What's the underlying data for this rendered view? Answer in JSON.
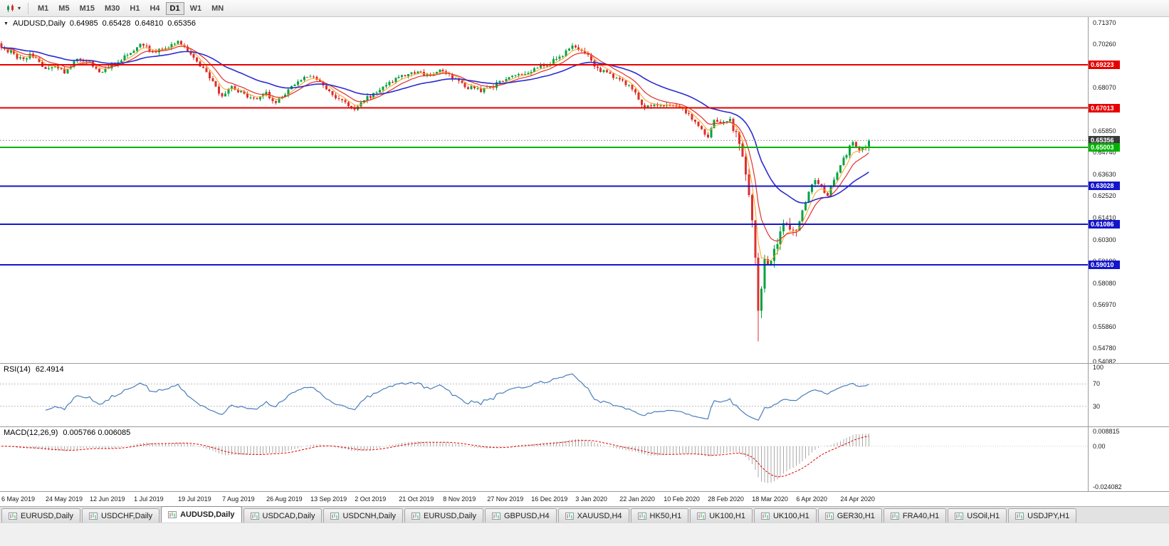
{
  "icons": {
    "collapse": "▼",
    "caret": "▾"
  },
  "toolbar": {
    "timeframes": [
      "M1",
      "M5",
      "M15",
      "M30",
      "H1",
      "H4",
      "D1",
      "W1",
      "MN"
    ],
    "active_timeframe": "D1"
  },
  "chart_header": {
    "symbol": "AUDUSD,Daily",
    "open": "0.64985",
    "high": "0.65428",
    "low": "0.64810",
    "close": "0.65356"
  },
  "levels": [
    {
      "label": "0.69223",
      "value": 0.69223,
      "color": "#e60000"
    },
    {
      "label": "0.67013",
      "value": 0.67013,
      "color": "#e60000"
    },
    {
      "label": "0.65003",
      "value": 0.65003,
      "color": "#00b300"
    },
    {
      "label": "0.63028",
      "value": 0.63028,
      "color": "#1414cc"
    },
    {
      "label": "0.61086",
      "value": 0.61086,
      "color": "#1414cc"
    },
    {
      "label": "0.59010",
      "value": 0.5901,
      "color": "#1414cc"
    }
  ],
  "current_price": {
    "label": "0.65356",
    "value": 0.65356,
    "badge_color": "#3a3a3a",
    "line_color": "#999999"
  },
  "price_axis": {
    "labels": [
      "0.71370",
      "0.70260",
      "0.69150",
      "0.68070",
      "0.66960",
      "0.65850",
      "0.64740",
      "0.63630",
      "0.62520",
      "0.61410",
      "0.60300",
      "0.59190",
      "0.58080",
      "0.56970",
      "0.55860",
      "0.54780"
    ],
    "min_label": "0.54082"
  },
  "rsi": {
    "name": "RSI(14)",
    "value": "62.4914",
    "axis_labels": [
      {
        "text": "100",
        "value": 100
      },
      {
        "text": "70",
        "value": 70
      },
      {
        "text": "30",
        "value": 30
      }
    ],
    "guide_levels": [
      70,
      30
    ],
    "line_color": "#4a7ebb"
  },
  "macd": {
    "name": "MACD(12,26,9)",
    "values": "0.005766 0.006085",
    "axis_labels": [
      {
        "text": "0.008815",
        "value": 0.008815
      },
      {
        "text": "0.00",
        "value": 0
      },
      {
        "text": "-0.024082",
        "value": -0.024082
      }
    ],
    "histogram_color": "#a9a9a9",
    "signal_color": "#e60000"
  },
  "date_axis": {
    "labels": [
      "6 May 2019",
      "24 May 2019",
      "12 Jun 2019",
      "1 Jul 2019",
      "19 Jul 2019",
      "7 Aug 2019",
      "26 Aug 2019",
      "13 Sep 2019",
      "2 Oct 2019",
      "21 Oct 2019",
      "8 Nov 2019",
      "27 Nov 2019",
      "16 Dec 2019",
      "3 Jan 2020",
      "22 Jan 2020",
      "10 Feb 2020",
      "28 Feb 2020",
      "18 Mar 2020",
      "6 Apr 2020",
      "24 Apr 2020"
    ]
  },
  "tabs": {
    "active_index": 2,
    "items": [
      {
        "label": "EURUSD,Daily"
      },
      {
        "label": "USDCHF,Daily"
      },
      {
        "label": "AUDUSD,Daily"
      },
      {
        "label": "USDCAD,Daily"
      },
      {
        "label": "USDCNH,Daily"
      },
      {
        "label": "EURUSD,Daily"
      },
      {
        "label": "GBPUSD,H4"
      },
      {
        "label": "XAUUSD,H4"
      },
      {
        "label": "HK50,H1"
      },
      {
        "label": "UK100,H1"
      },
      {
        "label": "UK100,H1"
      },
      {
        "label": "GER30,H1"
      },
      {
        "label": "FRA40,H1"
      },
      {
        "label": "USOil,H1"
      },
      {
        "label": "USDJPY,H1"
      }
    ]
  },
  "chart_data": {
    "type": "candlestick",
    "symbol": "AUDUSD",
    "timeframe": "D1",
    "title": "AUDUSD,Daily",
    "last_candle": {
      "open": 0.64985,
      "high": 0.65428,
      "low": 0.6481,
      "close": 0.65356
    },
    "candle_count": 276,
    "first_open": 0.703,
    "visible_high": 0.706,
    "visible_low": 0.551,
    "price_scale": {
      "top": 0.7165,
      "bottom": 0.54
    },
    "bull_color": "#00a342",
    "bear_color": "#dc2f2f",
    "volatile_range": [
      232,
      252
    ],
    "crash_low_index": 240,
    "crash_low": 0.551,
    "close_anchors": [
      [
        0,
        0.7015
      ],
      [
        3,
        0.6985
      ],
      [
        6,
        0.695
      ],
      [
        9,
        0.6972
      ],
      [
        12,
        0.6935
      ],
      [
        14,
        0.6892
      ],
      [
        17,
        0.6912
      ],
      [
        20,
        0.6882
      ],
      [
        24,
        0.6948
      ],
      [
        28,
        0.6932
      ],
      [
        31,
        0.6878
      ],
      [
        35,
        0.6922
      ],
      [
        39,
        0.6962
      ],
      [
        42,
        0.6998
      ],
      [
        45,
        0.7028
      ],
      [
        48,
        0.6982
      ],
      [
        52,
        0.7012
      ],
      [
        56,
        0.7038
      ],
      [
        58,
        0.7008
      ],
      [
        61,
        0.6958
      ],
      [
        64,
        0.6902
      ],
      [
        67,
        0.6828
      ],
      [
        70,
        0.6762
      ],
      [
        73,
        0.6802
      ],
      [
        77,
        0.6772
      ],
      [
        80,
        0.6752
      ],
      [
        84,
        0.6772
      ],
      [
        87,
        0.6732
      ],
      [
        91,
        0.6792
      ],
      [
        95,
        0.6848
      ],
      [
        98,
        0.6872
      ],
      [
        101,
        0.6842
      ],
      [
        105,
        0.6772
      ],
      [
        109,
        0.6722
      ],
      [
        112,
        0.6702
      ],
      [
        116,
        0.6752
      ],
      [
        120,
        0.6788
      ],
      [
        124,
        0.6842
      ],
      [
        128,
        0.6868
      ],
      [
        132,
        0.6888
      ],
      [
        136,
        0.6858
      ],
      [
        140,
        0.6898
      ],
      [
        144,
        0.6842
      ],
      [
        148,
        0.6808
      ],
      [
        152,
        0.6788
      ],
      [
        156,
        0.6812
      ],
      [
        160,
        0.6848
      ],
      [
        164,
        0.6878
      ],
      [
        168,
        0.6884
      ],
      [
        172,
        0.6918
      ],
      [
        176,
        0.6952
      ],
      [
        180,
        0.6998
      ],
      [
        182,
        0.7022
      ],
      [
        185,
        0.6982
      ],
      [
        189,
        0.6902
      ],
      [
        193,
        0.6868
      ],
      [
        196,
        0.6842
      ],
      [
        200,
        0.6798
      ],
      [
        203,
        0.6712
      ],
      [
        207,
        0.6722
      ],
      [
        210,
        0.6712
      ],
      [
        213,
        0.6722
      ],
      [
        217,
        0.6678
      ],
      [
        221,
        0.6612
      ],
      [
        224,
        0.6556
      ],
      [
        226,
        0.6638
      ],
      [
        229,
        0.6622
      ],
      [
        231,
        0.6642
      ],
      [
        233,
        0.6572
      ],
      [
        235,
        0.6455
      ],
      [
        237,
        0.6275
      ],
      [
        238,
        0.6115
      ],
      [
        239,
        0.5915
      ],
      [
        240,
        0.5672
      ],
      [
        241,
        0.5778
      ],
      [
        242,
        0.5928
      ],
      [
        244,
        0.5912
      ],
      [
        246,
        0.6028
      ],
      [
        248,
        0.6122
      ],
      [
        250,
        0.6082
      ],
      [
        252,
        0.6068
      ],
      [
        254,
        0.6182
      ],
      [
        256,
        0.6268
      ],
      [
        258,
        0.6342
      ],
      [
        260,
        0.6298
      ],
      [
        262,
        0.6252
      ],
      [
        264,
        0.6342
      ],
      [
        266,
        0.6408
      ],
      [
        268,
        0.6468
      ],
      [
        270,
        0.6528
      ],
      [
        272,
        0.6482
      ],
      [
        274,
        0.6498
      ],
      [
        275,
        0.6536
      ]
    ],
    "moving_averages": [
      {
        "period": 5,
        "color": "#ff9f1a",
        "width": 1
      },
      {
        "period": 10,
        "color": "#e03030",
        "width": 1.2
      },
      {
        "period": 30,
        "color": "#2b2bd0",
        "width": 1.6
      }
    ],
    "indicators": [
      {
        "name": "RSI",
        "period": 14,
        "current": 62.4914
      },
      {
        "name": "MACD",
        "fast": 12,
        "slow": 26,
        "signal": 9,
        "current_macd": 0.005766,
        "current_signal": 0.006085
      }
    ],
    "support_resistance": [
      0.69223,
      0.67013,
      0.65003,
      0.63028,
      0.61086,
      0.5901
    ]
  }
}
